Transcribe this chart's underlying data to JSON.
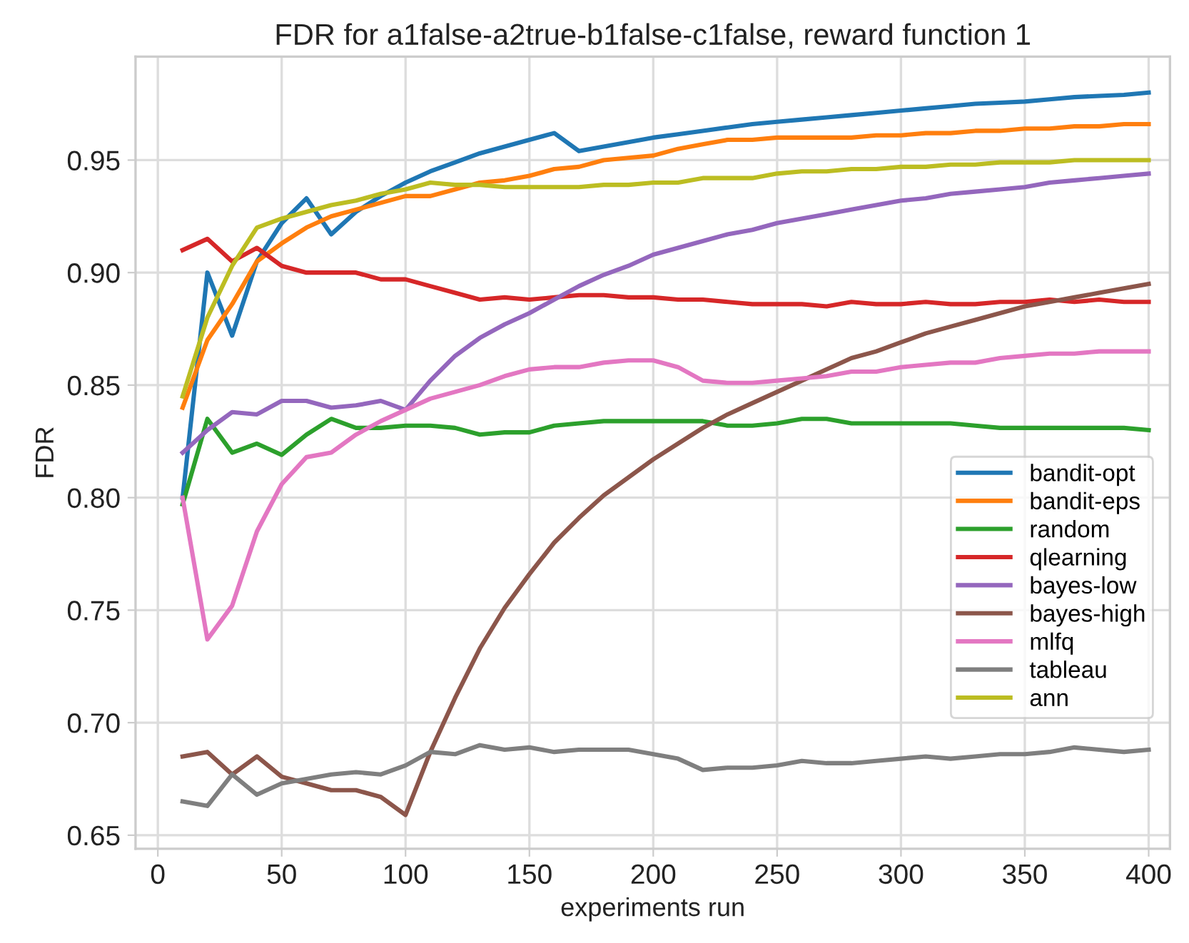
{
  "chart_data": {
    "type": "line",
    "title": "FDR for a1false-a2true-b1false-c1false, reward function 1",
    "xlabel": "experiments run",
    "ylabel": "FDR",
    "x": [
      10,
      20,
      30,
      40,
      50,
      60,
      70,
      80,
      90,
      100,
      110,
      120,
      130,
      140,
      150,
      160,
      170,
      180,
      190,
      200,
      210,
      220,
      230,
      240,
      250,
      260,
      270,
      280,
      290,
      300,
      310,
      320,
      330,
      340,
      350,
      360,
      370,
      380,
      390,
      400
    ],
    "xlim": [
      -9,
      408.6
    ],
    "ylim": [
      0.644,
      0.996
    ],
    "xticks": [
      0,
      50,
      100,
      150,
      200,
      250,
      300,
      350,
      400
    ],
    "yticks": [
      0.65,
      {
        "value": 0.7,
        "label": "0.70"
      },
      0.75,
      {
        "value": 0.8,
        "label": "0.80"
      },
      0.85,
      {
        "value": 0.9,
        "label": "0.90"
      },
      0.95
    ],
    "grid": true,
    "legend": "bottom right",
    "line_style": "solid",
    "marker": "none",
    "series": [
      {
        "name": "bandit-opt",
        "color": "#1f77b4",
        "values": [
          0.8,
          0.9,
          0.872,
          0.905,
          0.922,
          0.933,
          0.917,
          0.927,
          0.934,
          0.94,
          0.945,
          0.949,
          0.953,
          0.956,
          0.959,
          0.962,
          0.954,
          0.956,
          0.958,
          0.96,
          0.9615,
          0.963,
          0.9645,
          0.966,
          0.967,
          0.968,
          0.969,
          0.97,
          0.971,
          0.972,
          0.973,
          0.974,
          0.975,
          0.9755,
          0.976,
          0.977,
          0.978,
          0.9785,
          0.979,
          0.98
        ]
      },
      {
        "name": "bandit-eps",
        "color": "#ff7f0e",
        "values": [
          0.84,
          0.87,
          0.886,
          0.905,
          0.913,
          0.92,
          0.925,
          0.928,
          0.931,
          0.934,
          0.934,
          0.937,
          0.94,
          0.941,
          0.943,
          0.946,
          0.947,
          0.95,
          0.951,
          0.952,
          0.955,
          0.957,
          0.959,
          0.959,
          0.96,
          0.96,
          0.96,
          0.96,
          0.961,
          0.961,
          0.962,
          0.962,
          0.963,
          0.963,
          0.964,
          0.964,
          0.965,
          0.965,
          0.966,
          0.966
        ]
      },
      {
        "name": "random",
        "color": "#2ca02c",
        "values": [
          0.797,
          0.835,
          0.82,
          0.824,
          0.819,
          0.828,
          0.835,
          0.831,
          0.831,
          0.832,
          0.832,
          0.831,
          0.828,
          0.829,
          0.829,
          0.832,
          0.833,
          0.834,
          0.834,
          0.834,
          0.834,
          0.834,
          0.832,
          0.832,
          0.833,
          0.835,
          0.835,
          0.833,
          0.833,
          0.833,
          0.833,
          0.833,
          0.832,
          0.831,
          0.831,
          0.831,
          0.831,
          0.831,
          0.831,
          0.83
        ]
      },
      {
        "name": "qlearning",
        "color": "#d62728",
        "values": [
          0.91,
          0.915,
          0.905,
          0.911,
          0.903,
          0.9,
          0.9,
          0.9,
          0.897,
          0.897,
          0.894,
          0.891,
          0.888,
          0.889,
          0.888,
          0.889,
          0.89,
          0.89,
          0.889,
          0.889,
          0.888,
          0.888,
          0.887,
          0.886,
          0.886,
          0.886,
          0.885,
          0.887,
          0.886,
          0.886,
          0.887,
          0.886,
          0.886,
          0.887,
          0.887,
          0.888,
          0.887,
          0.888,
          0.887,
          0.887
        ]
      },
      {
        "name": "bayes-low",
        "color": "#9467bd",
        "values": [
          0.82,
          0.83,
          0.838,
          0.837,
          0.843,
          0.843,
          0.84,
          0.841,
          0.843,
          0.839,
          0.852,
          0.863,
          0.871,
          0.877,
          0.882,
          0.888,
          0.894,
          0.899,
          0.903,
          0.908,
          0.911,
          0.914,
          0.917,
          0.919,
          0.922,
          0.924,
          0.926,
          0.928,
          0.93,
          0.932,
          0.933,
          0.935,
          0.936,
          0.937,
          0.938,
          0.94,
          0.941,
          0.942,
          0.943,
          0.944
        ]
      },
      {
        "name": "bayes-high",
        "color": "#8c564b",
        "values": [
          0.685,
          0.687,
          0.677,
          0.685,
          0.676,
          0.673,
          0.67,
          0.67,
          0.667,
          0.659,
          0.687,
          0.711,
          0.733,
          0.751,
          0.766,
          0.78,
          0.791,
          0.801,
          0.809,
          0.817,
          0.824,
          0.831,
          0.837,
          0.842,
          0.847,
          0.852,
          0.857,
          0.862,
          0.865,
          0.869,
          0.873,
          0.876,
          0.879,
          0.882,
          0.885,
          0.887,
          0.889,
          0.891,
          0.893,
          0.895
        ]
      },
      {
        "name": "mlfq",
        "color": "#e377c2",
        "values": [
          0.8,
          0.737,
          0.752,
          0.785,
          0.806,
          0.818,
          0.82,
          0.828,
          0.834,
          0.839,
          0.844,
          0.847,
          0.85,
          0.854,
          0.857,
          0.858,
          0.858,
          0.86,
          0.861,
          0.861,
          0.858,
          0.852,
          0.851,
          0.851,
          0.852,
          0.853,
          0.854,
          0.856,
          0.856,
          0.858,
          0.859,
          0.86,
          0.86,
          0.862,
          0.863,
          0.864,
          0.864,
          0.865,
          0.865,
          0.865
        ]
      },
      {
        "name": "tableau",
        "color": "#7f7f7f",
        "values": [
          0.665,
          0.663,
          0.677,
          0.668,
          0.673,
          0.675,
          0.677,
          0.678,
          0.677,
          0.681,
          0.687,
          0.686,
          0.69,
          0.688,
          0.689,
          0.687,
          0.688,
          0.688,
          0.688,
          0.686,
          0.684,
          0.679,
          0.68,
          0.68,
          0.681,
          0.683,
          0.682,
          0.682,
          0.683,
          0.684,
          0.685,
          0.684,
          0.685,
          0.686,
          0.686,
          0.687,
          0.689,
          0.688,
          0.687,
          0.688
        ]
      },
      {
        "name": "ann",
        "color": "#bcbd22",
        "values": [
          0.845,
          0.88,
          0.903,
          0.92,
          0.924,
          0.927,
          0.93,
          0.932,
          0.935,
          0.937,
          0.94,
          0.939,
          0.939,
          0.938,
          0.938,
          0.938,
          0.938,
          0.939,
          0.939,
          0.94,
          0.94,
          0.942,
          0.942,
          0.942,
          0.944,
          0.945,
          0.945,
          0.946,
          0.946,
          0.947,
          0.947,
          0.948,
          0.948,
          0.949,
          0.949,
          0.949,
          0.95,
          0.95,
          0.95,
          0.95
        ]
      }
    ]
  }
}
